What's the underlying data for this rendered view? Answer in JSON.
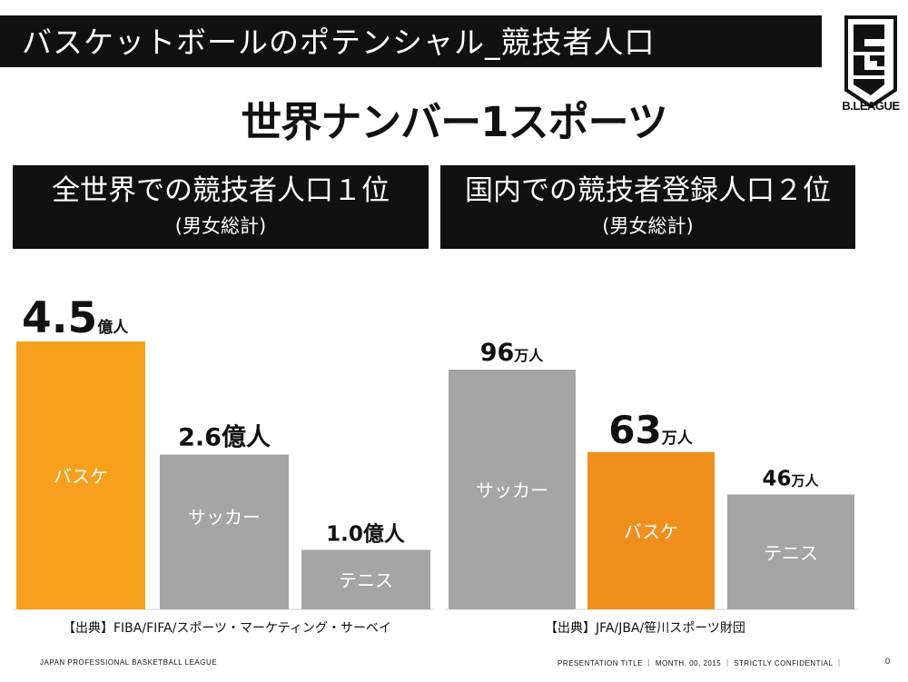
{
  "slide": {
    "title": "バスケットボールのポテンシャル_競技者人口",
    "headline": "世界ナンバー1スポーツ",
    "logo_text": "B.LEAGUE",
    "footer_left": "JAPAN PROFESSIONAL BASKETBALL LEAGUE",
    "footer_right": "PRESENTATION TITLE ｜ MONTH. 00, 2015 ｜ STRICTLY CONFIDENTIAL ｜",
    "page_number": "0"
  },
  "panels": [
    {
      "heading": "全世界での競技者人口１位",
      "subheading": "(男女総計)",
      "source": "【出典】FIBA/FIFA/スポーツ・マーケティング・サーベイ"
    },
    {
      "heading": "国内での競技者登録人口２位",
      "subheading": "(男女総計)",
      "source": "【出典】JFA/JBA/笹川スポーツ財団"
    }
  ],
  "colors": {
    "highlight": "#F7A01E",
    "highlight_dark": "#F08F1E",
    "other": "#A5A5A5",
    "dark": "#111111"
  },
  "chart_data": [
    {
      "type": "bar",
      "title": "",
      "categories": [
        "バスケ",
        "サッカー",
        "テニス"
      ],
      "values": [
        4.5,
        2.6,
        1.0
      ],
      "unit": "億人",
      "value_labels": [
        "4.5",
        "2.6",
        "1.0"
      ],
      "highlight_index": 0,
      "ylim": [
        0,
        4.5
      ],
      "grid": false,
      "legend": "none"
    },
    {
      "type": "bar",
      "title": "",
      "categories": [
        "サッカー",
        "バスケ",
        "テニス"
      ],
      "values": [
        96,
        63,
        46
      ],
      "unit": "万人",
      "value_labels": [
        "96",
        "63",
        "46"
      ],
      "highlight_index": 1,
      "ylim": [
        0,
        96
      ],
      "grid": false,
      "legend": "none"
    }
  ]
}
